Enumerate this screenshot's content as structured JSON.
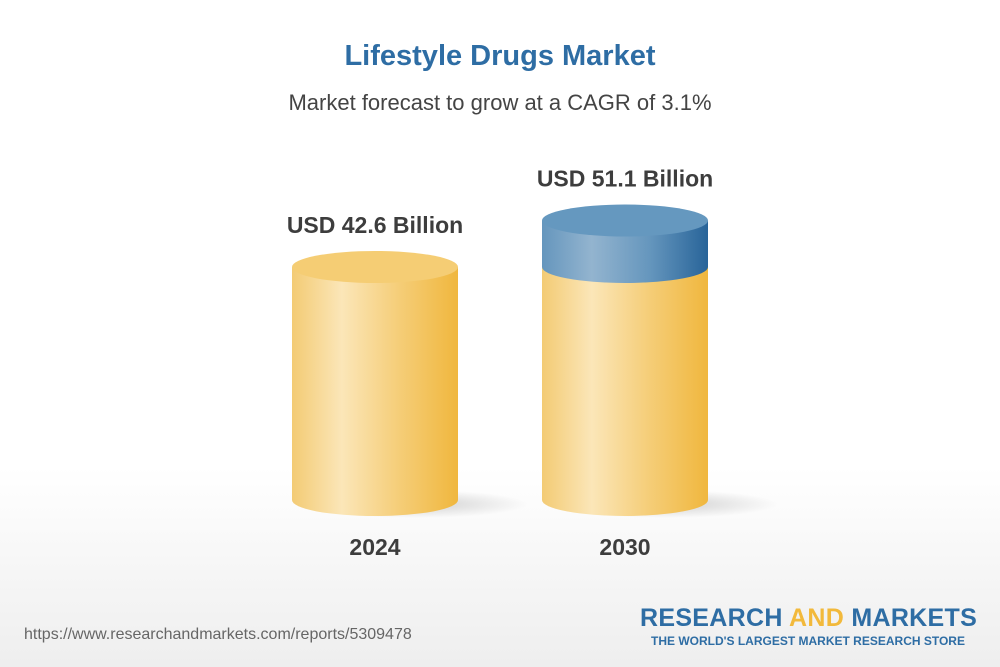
{
  "chart_data": {
    "type": "bar",
    "style": "3d-cylinder",
    "title": "Lifestyle Drugs Market",
    "subtitle": "Market forecast to grow at a CAGR of 3.1%",
    "categories": [
      "2024",
      "2030"
    ],
    "values": [
      42.6,
      51.1
    ],
    "data_labels": [
      "USD 42.6 Billion",
      "USD 51.1 Billion"
    ],
    "unit": "USD Billion",
    "colors": {
      "base": "#f2b93b",
      "base_light": "#fbe6b8",
      "growth": "#2e6da4",
      "growth_light": "#93b4cf",
      "title": "#2e6da4"
    }
  },
  "footer": {
    "url": "https://www.researchandmarkets.com/reports/5309478",
    "logo_part1": "RESEARCH ",
    "logo_part2": "AND",
    "logo_part3": " MARKETS",
    "logo_tagline": "THE WORLD'S LARGEST MARKET RESEARCH STORE"
  }
}
